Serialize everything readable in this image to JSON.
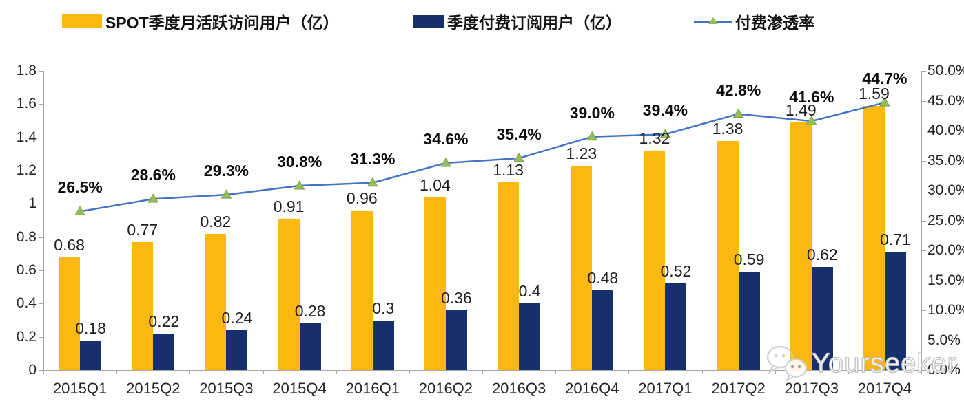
{
  "legend": {
    "items": [
      {
        "label": "SPOT季度月活跃访问用户（亿）",
        "swatch": "bar",
        "color": "#FBB811"
      },
      {
        "label": "季度付费订阅用户（亿）",
        "swatch": "bar",
        "color": "#16306E"
      },
      {
        "label": "付费渗透率",
        "swatch": "line-triangle",
        "color": "#4472C4",
        "marker_color": "#95BE5B"
      }
    ]
  },
  "chart_data": {
    "type": "combo-bar-line",
    "categories": [
      "2015Q1",
      "2015Q2",
      "2015Q3",
      "2015Q4",
      "2016Q1",
      "2016Q2",
      "2016Q3",
      "2016Q4",
      "2017Q1",
      "2017Q2",
      "2017Q3",
      "2017Q4"
    ],
    "series": [
      {
        "name": "SPOT季度月活跃访问用户（亿）",
        "type": "bar",
        "axis": "left",
        "color": "#FBB811",
        "values": [
          0.68,
          0.77,
          0.82,
          0.91,
          0.96,
          1.04,
          1.13,
          1.23,
          1.32,
          1.38,
          1.49,
          1.59
        ],
        "labels": [
          "0.68",
          "0.77",
          "0.82",
          "0.91",
          "0.96",
          "1.04",
          "1.13",
          "1.23",
          "1.32",
          "1.38",
          "1.49",
          "1.59"
        ]
      },
      {
        "name": "季度付费订阅用户（亿）",
        "type": "bar",
        "axis": "left",
        "color": "#16306E",
        "values": [
          0.18,
          0.22,
          0.24,
          0.28,
          0.3,
          0.36,
          0.4,
          0.48,
          0.52,
          0.59,
          0.62,
          0.71
        ],
        "labels": [
          "0.18",
          "0.22",
          "0.24",
          "0.28",
          "0.3",
          "0.36",
          "0.4",
          "0.48",
          "0.52",
          "0.59",
          "0.62",
          "0.71"
        ]
      },
      {
        "name": "付费渗透率",
        "type": "line",
        "axis": "right",
        "color": "#4472C4",
        "marker": "triangle",
        "marker_color": "#95BE5B",
        "values": [
          26.5,
          28.6,
          29.3,
          30.8,
          31.3,
          34.6,
          35.4,
          39.0,
          39.4,
          42.8,
          41.6,
          44.7
        ],
        "labels": [
          "26.5%",
          "28.6%",
          "29.3%",
          "30.8%",
          "31.3%",
          "34.6%",
          "35.4%",
          "39.0%",
          "39.4%",
          "42.8%",
          "41.6%",
          "44.7%"
        ]
      }
    ],
    "left_axis": {
      "min": 0,
      "max": 1.8,
      "tick_labels": [
        "0",
        "0.2",
        "0.4",
        "0.6",
        "0.8",
        "1",
        "1.2",
        "1.4",
        "1.6",
        "1.8"
      ]
    },
    "right_axis": {
      "min": 0,
      "max": 50,
      "tick_labels": [
        "0.0%",
        "5.0%",
        "10.0%",
        "15.0%",
        "20.0%",
        "25.0%",
        "30.0%",
        "35.0%",
        "40.0%",
        "45.0%",
        "50.0%"
      ]
    },
    "grid": false,
    "legend_position": "top"
  },
  "watermark": {
    "text": "Yourseeker",
    "icon": "wechat-icon"
  }
}
